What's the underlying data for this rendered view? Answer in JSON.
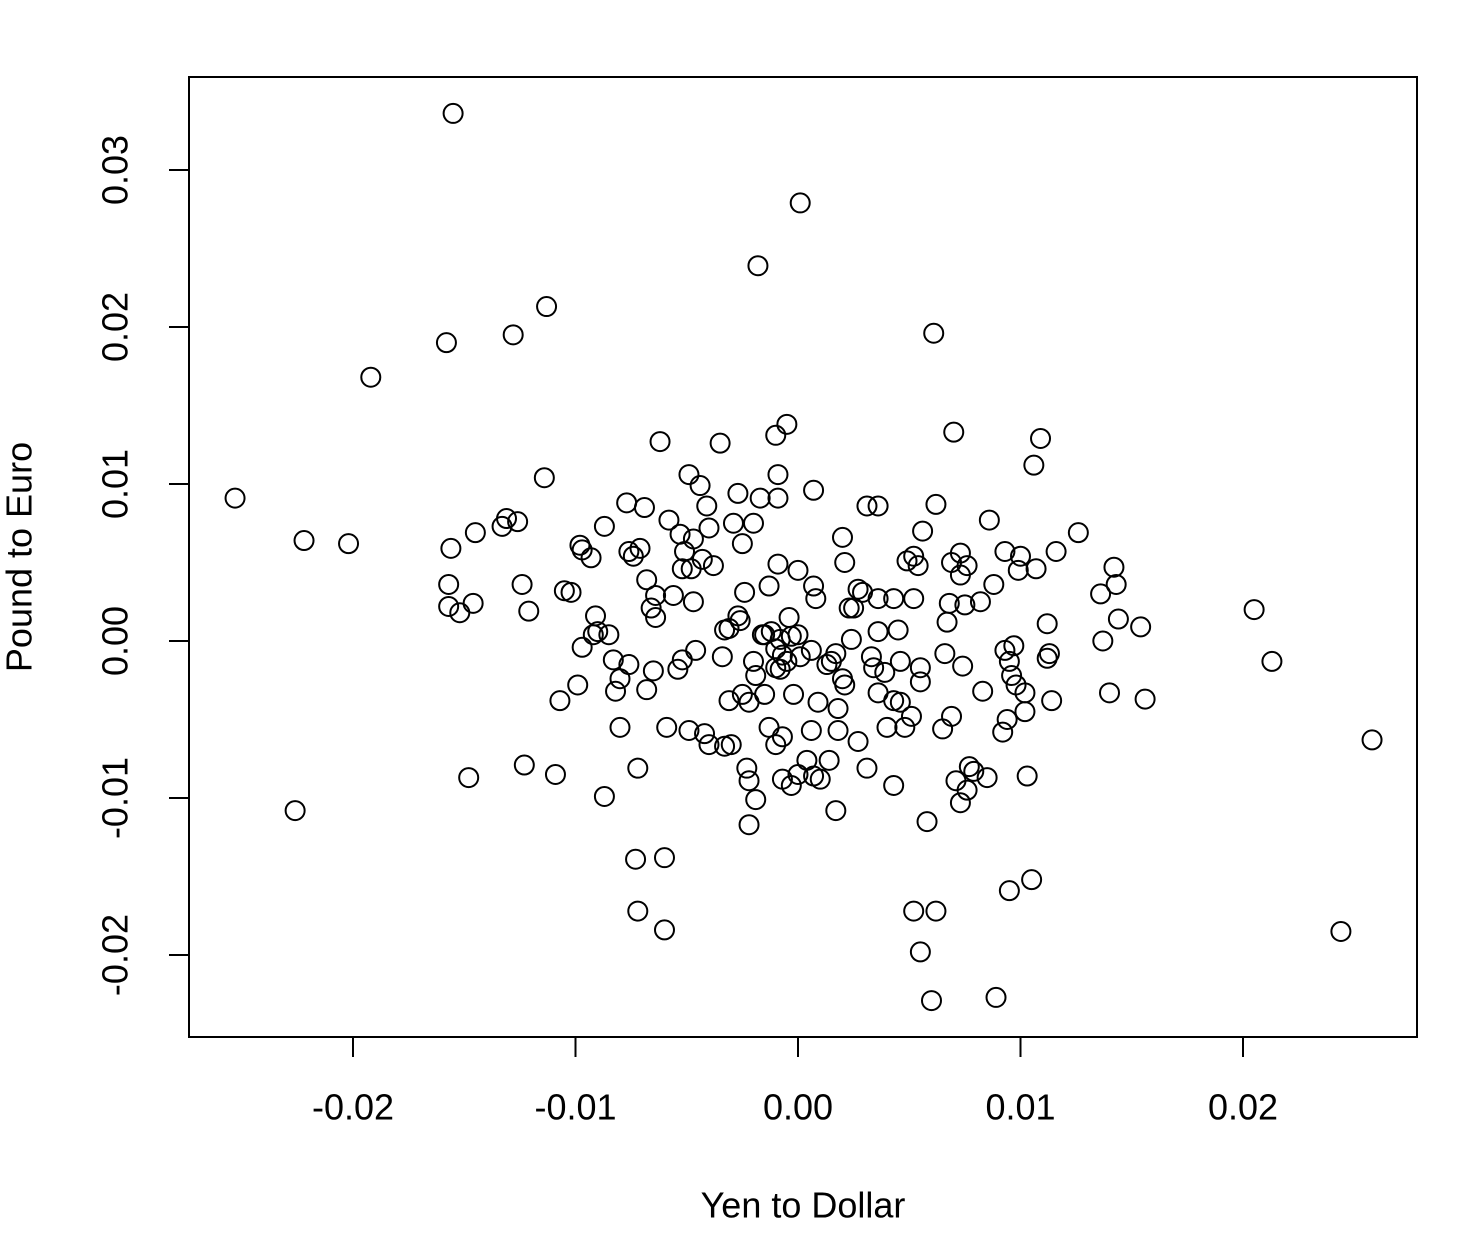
{
  "chart_data": {
    "type": "scatter",
    "xlabel": "Yen to Dollar",
    "ylabel": "Pound to Euro",
    "xlim": [
      -0.02737,
      0.02782
    ],
    "ylim": [
      -0.02522,
      0.03592
    ],
    "xticks": [
      -0.02,
      -0.01,
      {
        "value": 0,
        "label": "0.00"
      },
      0.01,
      0.02
    ],
    "yticks": [
      -0.02,
      -0.01,
      {
        "value": 0,
        "label": "0.00"
      },
      0.01,
      0.02,
      0.03
    ],
    "color": "#000000",
    "grid": false,
    "x": [
      -0.0155,
      0.0001,
      -0.0018,
      -0.0113,
      -0.0158,
      -0.0128,
      -0.0192,
      0.0061,
      -0.0253,
      -0.0222,
      -0.0202,
      -0.0226,
      0.0205,
      0.0213,
      0.0258,
      0.0244,
      -0.0114,
      -0.0005,
      -0.001,
      0.007,
      0.0109,
      0.0106,
      -0.0062,
      -0.0035,
      -0.0049,
      -0.0044,
      -0.0009,
      -0.0009,
      -0.0017,
      -0.0027,
      0.0007,
      -0.0041,
      -0.0077,
      -0.0069,
      -0.0087,
      -0.0058,
      -0.0029,
      -0.002,
      -0.004,
      -0.0053,
      -0.0047,
      -0.0025,
      0.0031,
      0.0036,
      0.0062,
      0.0086,
      0.0126,
      0.0056,
      0.002,
      -0.0133,
      -0.0131,
      -0.0126,
      -0.0145,
      -0.0156,
      -0.0098,
      -0.0097,
      -0.0093,
      -0.0076,
      -0.0071,
      -0.0074,
      -0.0051,
      -0.0043,
      -0.0052,
      -0.0048,
      -0.0038,
      -0.0009,
      0.0,
      0.0021,
      0.0049,
      0.0052,
      0.0054,
      0.0069,
      0.0073,
      0.0076,
      0.0073,
      0.0093,
      0.01,
      0.0099,
      0.0107,
      0.0116,
      0.0142,
      0.0143,
      0.0136,
      0.0144,
      0.0154,
      0.0137,
      0.0156,
      0.014,
      0.0112,
      0.0113,
      0.0112,
      0.0097,
      0.0093,
      0.0095,
      0.0096,
      0.0098,
      0.0102,
      0.0114,
      0.0102,
      0.0094,
      0.0092,
      0.0103,
      0.0088,
      0.0082,
      0.0075,
      0.0068,
      0.0067,
      0.0066,
      0.0074,
      0.0083,
      0.0069,
      0.0065,
      0.0077,
      0.0079,
      0.0071,
      0.0076,
      0.0073,
      0.0085,
      0.0058,
      0.0095,
      0.0105,
      0.0052,
      0.0062,
      0.0055,
      0.006,
      0.0089,
      -0.006,
      -0.0072,
      -0.0073,
      -0.006,
      -0.0148,
      -0.0123,
      -0.0109,
      -0.0087,
      -0.0072,
      -0.008,
      -0.0099,
      -0.0107,
      -0.0097,
      -0.0091,
      -0.009,
      -0.0085,
      -0.0083,
      -0.008,
      -0.0082,
      -0.0076,
      -0.0068,
      -0.0065,
      -0.0059,
      -0.0049,
      -0.0042,
      -0.004,
      -0.0033,
      -0.003,
      -0.0054,
      -0.0052,
      -0.0046,
      -0.0034,
      -0.0031,
      -0.0027,
      -0.0047,
      -0.0056,
      -0.0064,
      -0.0068,
      -0.0066,
      -0.0064,
      -0.0024,
      -0.0013,
      0.0007,
      0.0008,
      0.0027,
      0.0029,
      0.0036,
      0.0043,
      0.0052,
      0.0023,
      0.0025,
      -0.0004,
      -0.0015,
      -0.0012,
      -0.0003,
      0.0,
      -0.0008,
      0.0024,
      0.0036,
      0.0045,
      0.0006,
      -0.0007,
      -0.0005,
      -0.001,
      -0.0008,
      -0.002,
      -0.0019,
      0.0017,
      0.0013,
      0.0015,
      0.0033,
      0.0034,
      0.0039,
      0.0046,
      0.0055,
      0.0055,
      0.002,
      0.0021,
      -0.0002,
      0.0009,
      -0.0015,
      -0.0025,
      -0.0022,
      -0.0031,
      0.0036,
      0.0043,
      0.0046,
      0.0018,
      0.004,
      0.0048,
      0.0051,
      -0.0013,
      0.0006,
      0.0018,
      0.0027,
      -0.0007,
      -0.001,
      0.0014,
      0.0004,
      0.0031,
      0.0,
      0.0007,
      -0.0007,
      -0.0003,
      0.001,
      -0.0023,
      -0.0022,
      -0.0019,
      -0.0022,
      0.0017,
      0.0043,
      -0.0157,
      -0.0157,
      -0.0152,
      -0.0146,
      -0.0124,
      -0.0121,
      -0.0105,
      -0.0102,
      -0.0092,
      -0.0033,
      -0.0026,
      -0.0016,
      0.0001,
      -0.001
    ],
    "values": [
      0.0336,
      0.0279,
      0.0239,
      0.0213,
      0.019,
      0.0195,
      0.0168,
      0.0196,
      0.0091,
      0.0064,
      0.0062,
      -0.0108,
      0.002,
      -0.0013,
      -0.0063,
      -0.0185,
      0.0104,
      0.0138,
      0.0131,
      0.0133,
      0.0129,
      0.0112,
      0.0127,
      0.0126,
      0.0106,
      0.0099,
      0.0106,
      0.0091,
      0.0091,
      0.0094,
      0.0096,
      0.0086,
      0.0088,
      0.0085,
      0.0073,
      0.0077,
      0.0075,
      0.0075,
      0.0072,
      0.0068,
      0.0065,
      0.0062,
      0.0086,
      0.0086,
      0.0087,
      0.0077,
      0.0069,
      0.007,
      0.0066,
      0.0073,
      0.0078,
      0.0076,
      0.0069,
      0.0059,
      0.0061,
      0.0058,
      0.0053,
      0.0057,
      0.0059,
      0.0054,
      0.0057,
      0.0052,
      0.0046,
      0.0046,
      0.0048,
      0.0049,
      0.0045,
      0.005,
      0.0051,
      0.0054,
      0.0048,
      0.005,
      0.0056,
      0.0048,
      0.0042,
      0.0057,
      0.0054,
      0.0045,
      0.0046,
      0.0057,
      0.0047,
      0.0036,
      0.003,
      0.0014,
      0.0009,
      0,
      -0.0037,
      -0.0033,
      0.0011,
      -0.0008,
      -0.0011,
      -0.0003,
      -0.0006,
      -0.0013,
      -0.0022,
      -0.0028,
      -0.0033,
      -0.0038,
      -0.0045,
      -0.005,
      -0.0058,
      -0.0086,
      0.0036,
      0.0025,
      0.0023,
      0.0024,
      0.0012,
      -0.0008,
      -0.0016,
      -0.0032,
      -0.0048,
      -0.0056,
      -0.008,
      -0.0083,
      -0.0089,
      -0.0095,
      -0.0103,
      -0.0087,
      -0.0115,
      -0.0159,
      -0.0152,
      -0.0172,
      -0.0172,
      -0.0198,
      -0.0229,
      -0.0227,
      -0.0184,
      -0.0172,
      -0.0139,
      -0.0138,
      -0.0087,
      -0.0079,
      -0.0085,
      -0.0099,
      -0.0081,
      -0.0055,
      -0.0028,
      -0.0038,
      -0.0004,
      0.0016,
      0.0006,
      0.0004,
      -0.0012,
      -0.0024,
      -0.0032,
      -0.0015,
      -0.0031,
      -0.0019,
      -0.0055,
      -0.0057,
      -0.0059,
      -0.0066,
      -0.0067,
      -0.0066,
      -0.0018,
      -0.0012,
      -0.0006,
      -0.001,
      0.0008,
      0.0016,
      0.0025,
      0.0029,
      0.0029,
      0.0039,
      0.0021,
      0.0015,
      0.0031,
      0.0035,
      0.0035,
      0.0027,
      0.0033,
      0.0031,
      0.0027,
      0.0027,
      0.0027,
      0.0021,
      0.0021,
      0.0015,
      0.0004,
      0.0006,
      0.0003,
      0.0004,
      0.0001,
      0.0001,
      0.0006,
      0.0007,
      -0.0006,
      -0.0009,
      -0.0013,
      -0.0017,
      -0.0018,
      -0.0013,
      -0.0022,
      -0.0008,
      -0.0015,
      -0.0013,
      -0.001,
      -0.0017,
      -0.002,
      -0.0013,
      -0.0017,
      -0.0026,
      -0.0024,
      -0.0028,
      -0.0034,
      -0.0039,
      -0.0034,
      -0.0034,
      -0.0039,
      -0.0038,
      -0.0033,
      -0.0038,
      -0.0039,
      -0.0043,
      -0.0055,
      -0.0055,
      -0.0048,
      -0.0055,
      -0.0057,
      -0.0057,
      -0.0064,
      -0.0061,
      -0.0066,
      -0.0076,
      -0.0076,
      -0.0081,
      -0.0085,
      -0.0086,
      -0.0088,
      -0.0092,
      -0.0088,
      -0.0081,
      -0.0089,
      -0.0101,
      -0.0117,
      -0.0108,
      -0.0092,
      0.0036,
      0.0022,
      0.0018,
      0.0024,
      0.0036,
      0.0019,
      0.0032,
      0.0031,
      0.0004,
      0.0007,
      0.0013,
      0.0004,
      -0.001,
      -0.0005
    ]
  }
}
